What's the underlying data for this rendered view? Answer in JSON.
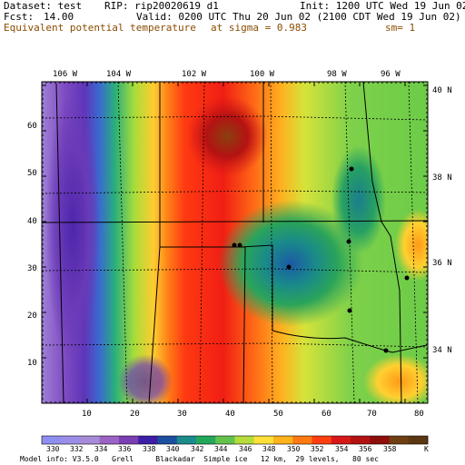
{
  "header": {
    "dataset": "Dataset: test",
    "rip": "RIP: rip20020619 d1",
    "init": "Init: 1200 UTC Wed 19 Jun 02",
    "fcst_label": "Fcst:",
    "fcst_value": "14.00",
    "valid": "Valid: 0200 UTC Thu 20 Jun 02 (2100 CDT Wed 19 Jun 02)",
    "field": "Equivalent potential temperature",
    "level": "at sigma = 0.983",
    "smooth": "sm= 1"
  },
  "map": {
    "lon_labels": [
      "106 W",
      "104 W",
      "102 W",
      "100 W",
      "98 W",
      "96 W"
    ],
    "lat_labels": [
      "40 N",
      "38 N",
      "36 N",
      "34 N"
    ],
    "x_ticks": [
      "10",
      "20",
      "30",
      "40",
      "50",
      "60",
      "70",
      "80"
    ],
    "y_ticks": [
      "10",
      "20",
      "30",
      "40",
      "50",
      "60"
    ]
  },
  "colorbar": {
    "labels": [
      "330",
      "332",
      "334",
      "336",
      "338",
      "340",
      "342",
      "344",
      "346",
      "348",
      "350",
      "352",
      "354",
      "356",
      "358",
      "K"
    ],
    "colors": [
      "#8f8ff2",
      "#9a8ee9",
      "#a88bd8",
      "#9b63c4",
      "#7a3fb3",
      "#3d1ea6",
      "#1d4fa0",
      "#1b8b8b",
      "#22a85a",
      "#63c24c",
      "#b4dd3a",
      "#ffe03a",
      "#ffb21c",
      "#ff7a12",
      "#ff3e10",
      "#d81818",
      "#b41212",
      "#8f0d0d",
      "#6e3f12",
      "#5b3612"
    ]
  },
  "footer": {
    "model_info": "Model info: V3.5.0   Grell     Blackadar  Simple ice   12 km,  29 levels,   80 sec"
  }
}
